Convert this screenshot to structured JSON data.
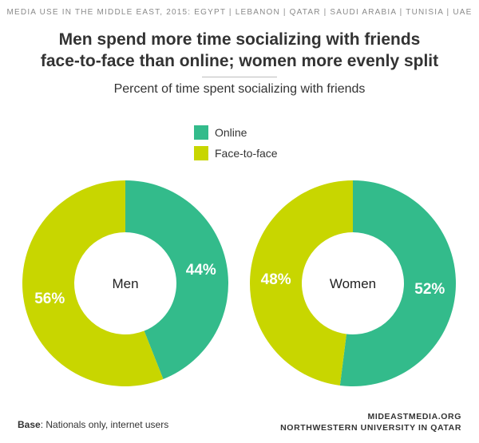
{
  "header": {
    "kicker": "MEDIA USE IN THE MIDDLE EAST, 2015: EGYPT | LEBANON | QATAR | SAUDI ARABIA | TUNISIA | UAE",
    "title_line1": "Men spend more time socializing with friends",
    "title_line2": "face-to-face than online; women more evenly split",
    "subtitle": "Percent of time spent socializing with friends"
  },
  "colors": {
    "online": "#33bb8b",
    "face_to_face": "#c8d600"
  },
  "chart_data": [
    {
      "type": "pie",
      "center_label": "Men",
      "series": [
        {
          "name": "Online",
          "value": 44,
          "label": "44%"
        },
        {
          "name": "Face-to-face",
          "value": 56,
          "label": "56%"
        }
      ]
    },
    {
      "type": "pie",
      "center_label": "Women",
      "series": [
        {
          "name": "Online",
          "value": 52,
          "label": "52%"
        },
        {
          "name": "Face-to-face",
          "value": 48,
          "label": "48%"
        }
      ]
    }
  ],
  "legend": [
    {
      "name": "Online",
      "color": "#33bb8b"
    },
    {
      "name": "Face-to-face",
      "color": "#c8d600"
    }
  ],
  "footer": {
    "base_label": "Base",
    "base_text": ": Nationals only, internet users",
    "source_line1": "MIDEASTMEDIA.ORG",
    "source_line2": "NORTHWESTERN UNIVERSITY IN QATAR"
  }
}
